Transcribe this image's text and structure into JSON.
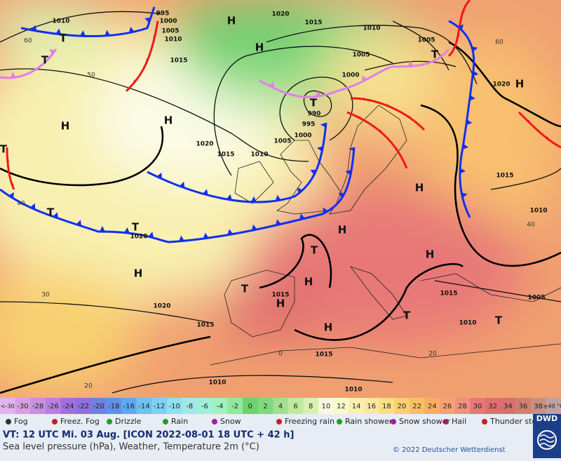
{
  "map": {
    "isobar_labels": [
      "1010",
      "1000",
      "1005",
      "1010",
      "1015",
      "1020",
      "1015",
      "1010",
      "1005",
      "1005",
      "1000",
      "990",
      "995",
      "1000",
      "1005",
      "1010",
      "1015",
      "1020",
      "1020",
      "1015",
      "1010",
      "1020",
      "1015",
      "1015",
      "1010",
      "1005",
      "1020",
      "1015",
      "1015",
      "1010",
      "1010",
      "995"
    ],
    "pressure_centers": [
      "H",
      "H",
      "H",
      "H",
      "H",
      "H",
      "H",
      "H",
      "H",
      "H",
      "H",
      "H",
      "T",
      "T",
      "T",
      "T",
      "T",
      "T",
      "T",
      "T",
      "T",
      "T",
      "T"
    ],
    "latitude_labels": [
      "60",
      "50",
      "40",
      "30",
      "20",
      "60",
      "40",
      "20",
      "0"
    ]
  },
  "temperature_scale": {
    "labels": [
      "<-30",
      "-30",
      "-28",
      "-26",
      "-24",
      "-22",
      "-20",
      "-18",
      "-16",
      "-14",
      "-12",
      "-10",
      "-8",
      "-6",
      "-4",
      "-2",
      "0",
      "2",
      "4",
      "6",
      "8",
      "10",
      "12",
      "14",
      "16",
      "18",
      "20",
      "22",
      "24",
      "26",
      "28",
      "30",
      "32",
      "34",
      "36",
      "38",
      "≥40 °C"
    ],
    "colors": [
      "#e2b4ec",
      "#d8a0e0",
      "#c890e0",
      "#b880e0",
      "#a070e0",
      "#9070e0",
      "#7080e0",
      "#6090e8",
      "#60a8f0",
      "#70c0f0",
      "#80d0f0",
      "#90e0f0",
      "#a0e8e8",
      "#a0f0d8",
      "#a0f0c0",
      "#90e8a0",
      "#70d070",
      "#80d880",
      "#a0e090",
      "#c0e8a0",
      "#d8f0b0",
      "#f8f8e0",
      "#f8f8c8",
      "#f8f0b0",
      "#f8e8a0",
      "#f8e080",
      "#f8d070",
      "#f8c060",
      "#f8b060",
      "#f8a070",
      "#f09080",
      "#e87878",
      "#e07070",
      "#d87070",
      "#d08070",
      "#c89080",
      "#c0a0a0"
    ]
  },
  "weather_legend": [
    "Fog",
    "Freez. Fog",
    "Drizzle",
    "Rain",
    "Snow",
    "Freezing rain",
    "Rain shower",
    "Snow shower",
    "Hail",
    "Thunder storm"
  ],
  "footer": {
    "valid_time": "VT: 12 UTC Mi.  03 Aug. [ICON 2022-08-01  18 UTC + 42 h]",
    "description": "Sea level pressure (hPa), Weather, Temperature 2m (°C)",
    "copyright": "© 2022 Deutscher Wetterdienst",
    "logo": "DWD"
  }
}
